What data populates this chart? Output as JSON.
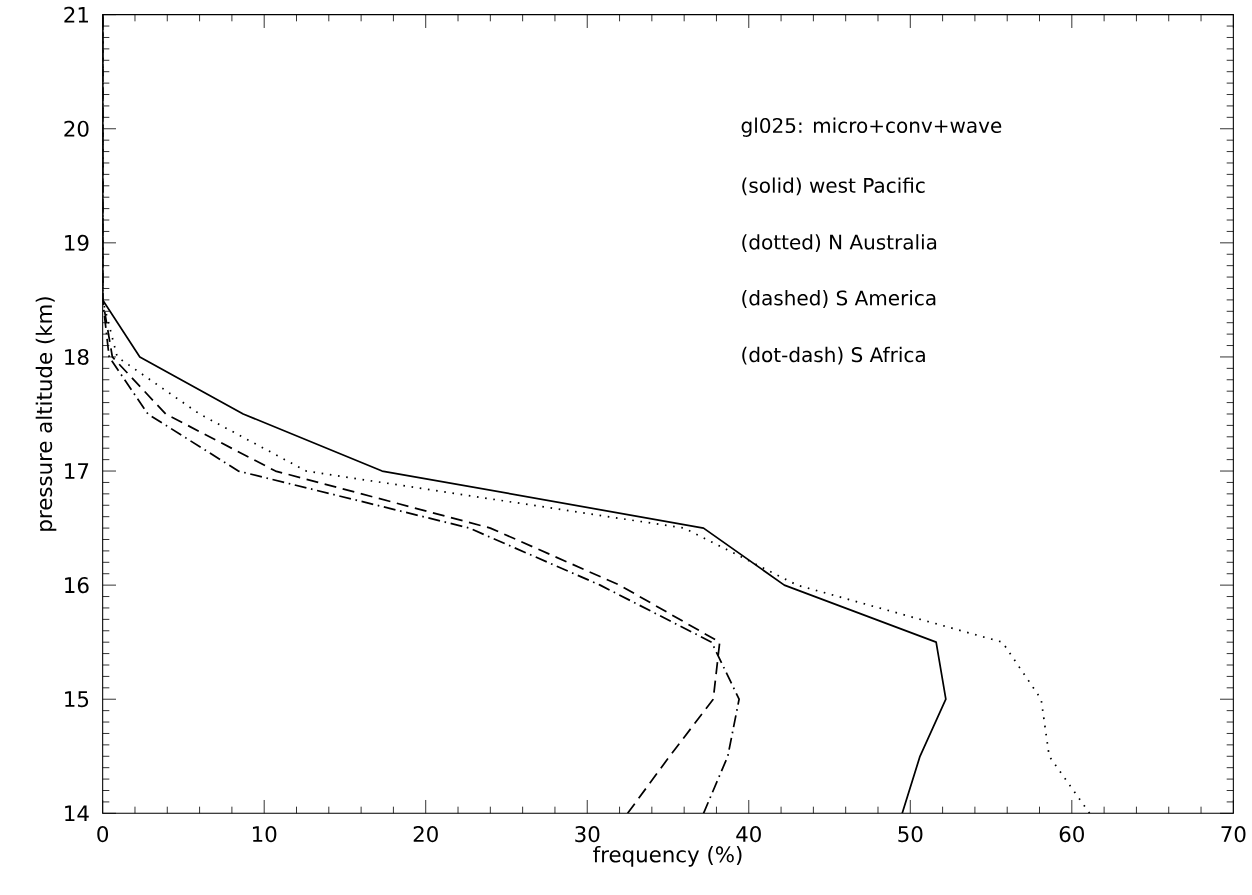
{
  "chart_data": {
    "type": "line",
    "xlabel": "frequency (%)",
    "ylabel": "pressure altitude (km)",
    "xlim": [
      0,
      70
    ],
    "ylim": [
      14,
      21
    ],
    "xticks": [
      0,
      10,
      20,
      30,
      40,
      50,
      60,
      70
    ],
    "yticks": [
      14,
      15,
      16,
      17,
      18,
      19,
      20,
      21
    ],
    "marker": "none",
    "annotations": [
      "gl025: micro+conv+wave",
      "(solid) west Pacific",
      "(dotted) N Australia",
      "(dashed) S America",
      "(dot-dash) S Africa"
    ],
    "series": [
      {
        "color": "#000000",
        "line_style": "solid",
        "x": [
          49.5,
          50.6,
          52.2,
          51.6,
          42.2,
          37.2,
          17.3,
          8.7,
          2.3,
          0,
          0,
          0,
          0,
          0,
          0
        ],
        "values": [
          14,
          14.5,
          15,
          15.5,
          16,
          16.5,
          17,
          17.5,
          18,
          18.5,
          19,
          19.5,
          20,
          20.5,
          21
        ]
      },
      {
        "color": "#000000",
        "line_style": "dotted",
        "x": [
          61.1,
          58.6,
          58.1,
          55.7,
          43.0,
          36.0,
          12.6,
          6.0,
          0.9,
          0,
          0,
          0,
          0,
          0,
          0
        ],
        "values": [
          14,
          14.5,
          15,
          15.5,
          16,
          16.5,
          17,
          17.5,
          18,
          18.5,
          19,
          19.5,
          20,
          20.5,
          21
        ]
      },
      {
        "color": "#000000",
        "line_style": "dashed",
        "x": [
          32.5,
          35.1,
          37.8,
          38.2,
          32.0,
          24.0,
          10.7,
          3.9,
          0.6,
          0,
          0,
          0,
          0,
          0,
          0
        ],
        "values": [
          14,
          14.5,
          15,
          15.5,
          16,
          16.5,
          17,
          17.5,
          18,
          18.5,
          19,
          19.5,
          20,
          20.5,
          21
        ]
      },
      {
        "color": "#000000",
        "line_style": "dashdot",
        "x": [
          37.2,
          38.7,
          39.4,
          37.7,
          30.8,
          22.7,
          8.4,
          2.8,
          0.4,
          0,
          0,
          0,
          0,
          0,
          0
        ],
        "values": [
          14,
          14.5,
          15,
          15.5,
          16,
          16.5,
          17,
          17.5,
          18,
          18.5,
          19,
          19.5,
          20,
          20.5,
          21
        ]
      }
    ]
  }
}
